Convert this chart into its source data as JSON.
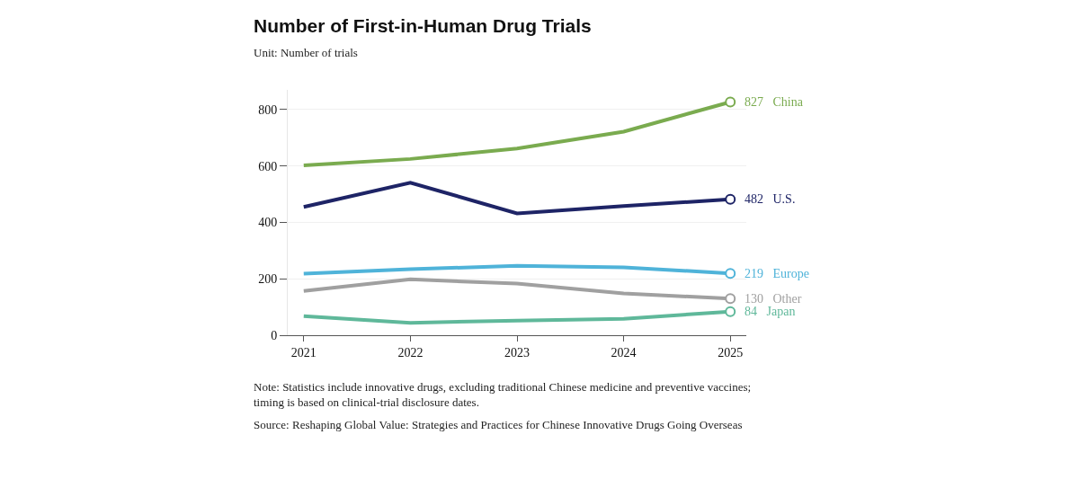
{
  "chart_data": {
    "type": "line",
    "title": "Number of First-in-Human Drug Trials",
    "subtitle": "Unit: Number of trials",
    "categories": [
      "2021",
      "2022",
      "2023",
      "2024",
      "2025"
    ],
    "series": [
      {
        "name": "China",
        "color": "#7aab4f",
        "values": [
          602,
          625,
          662,
          722,
          827
        ],
        "value_labels": [
          null,
          null,
          null,
          null,
          "827"
        ]
      },
      {
        "name": "U.S.",
        "color": "#1e2466",
        "values": [
          455,
          541,
          432,
          458,
          482
        ],
        "value_labels": [
          null,
          null,
          null,
          null,
          "482"
        ]
      },
      {
        "name": "Europe",
        "color": "#4fb3d9",
        "values": [
          218,
          234,
          246,
          241,
          219
        ],
        "value_labels": [
          null,
          null,
          null,
          null,
          "219"
        ]
      },
      {
        "name": "Other",
        "color": "#a0a0a0",
        "values": [
          157,
          198,
          183,
          148,
          130
        ],
        "value_labels": [
          null,
          null,
          null,
          null,
          "130"
        ]
      },
      {
        "name": "Japan",
        "color": "#5fb89a",
        "values": [
          68,
          44,
          52,
          58,
          84
        ],
        "value_labels": [
          null,
          null,
          null,
          null,
          "84"
        ]
      }
    ],
    "ylim": [
      0,
      870
    ],
    "yticks": [
      0,
      200,
      400,
      600,
      800
    ],
    "grid": "y",
    "legend": false,
    "line_style": "solid",
    "annotations": [
      "Note: Statistics include innovative drugs, excluding traditional Chinese medicine and preventive vaccines; timing is based on clinical-trial disclosure dates.",
      "Source: Reshaping Global Value: Strategies and Practices for Chinese Innovative Drugs Going Overseas"
    ]
  }
}
